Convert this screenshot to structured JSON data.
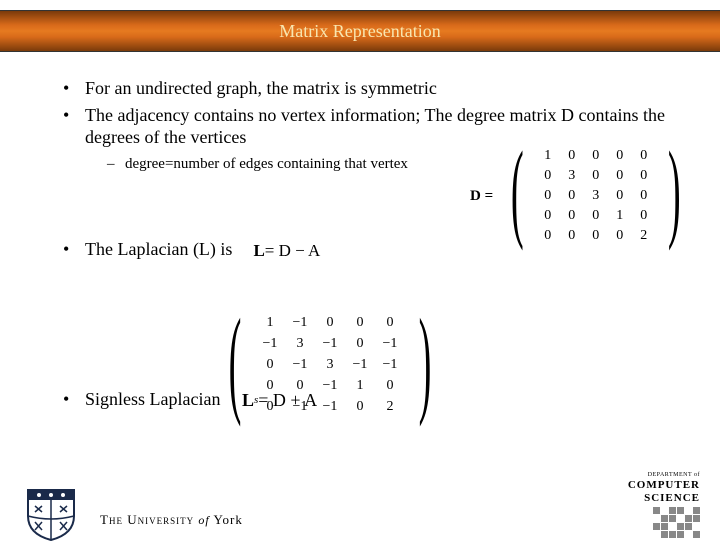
{
  "title": "Matrix Representation",
  "bullets": {
    "b1": "For an undirected graph, the matrix is symmetric",
    "b2": "The adjacency contains no vertex information; The degree matrix D contains the degrees of the vertices",
    "b2_sub": "degree=number of edges containing that vertex",
    "b3": "The Laplacian (L) is",
    "b4": "Signless Laplacian"
  },
  "equations": {
    "D_label": "D =",
    "L_eq_L": "L",
    "L_eq_rest": " = D − A",
    "Ls_L": "L",
    "Ls_s": "s",
    "Ls_rest": " = D + A"
  },
  "matrix_D": {
    "rows": [
      [
        "1",
        "0",
        "0",
        "0",
        "0"
      ],
      [
        "0",
        "3",
        "0",
        "0",
        "0"
      ],
      [
        "0",
        "0",
        "3",
        "0",
        "0"
      ],
      [
        "0",
        "0",
        "0",
        "1",
        "0"
      ],
      [
        "0",
        "0",
        "0",
        "0",
        "2"
      ]
    ]
  },
  "matrix_L": {
    "rows": [
      [
        "1",
        "−1",
        "0",
        "0",
        "0"
      ],
      [
        "−1",
        "3",
        "−1",
        "0",
        "−1"
      ],
      [
        "0",
        "−1",
        "3",
        "−1",
        "−1"
      ],
      [
        "0",
        "0",
        "−1",
        "1",
        "0"
      ],
      [
        "0",
        "−1",
        "−1",
        "0",
        "2"
      ]
    ]
  },
  "footer": {
    "university": "THE UNIVERSITY of York",
    "univ_the": "The",
    "univ_name": "University",
    "univ_of": "of",
    "univ_york": "York",
    "cs_dept": "DEPARTMENT of",
    "cs_label1": "COMPUTER",
    "cs_label2": "SCIENCE"
  },
  "style": {
    "title_text_color": "#f8e6b0",
    "title_bar_gradient": [
      "#7a3a0a",
      "#d86a1a",
      "#e67a20",
      "#d86a1a",
      "#7a3a0a"
    ],
    "body_bg": "#ffffff",
    "text_color": "#000000",
    "title_fontsize": 18,
    "bullet_fontsize": 18,
    "sub_bullet_fontsize": 15,
    "matrix_fontsize": 14
  }
}
